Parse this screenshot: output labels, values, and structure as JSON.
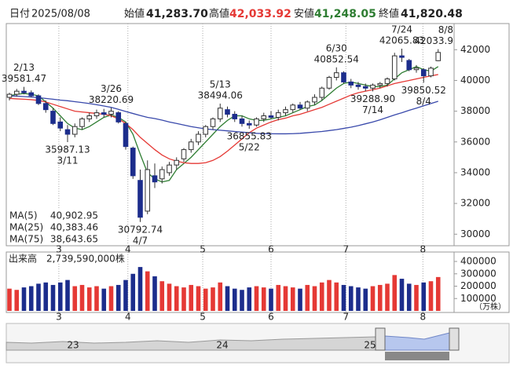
{
  "header": {
    "date_label": "日付",
    "date": "2025/08/08",
    "open_label": "始値",
    "open": "41,283.70",
    "high_label": "高値",
    "high": "42,033.92",
    "low_label": "安値",
    "low": "41,248.05",
    "close_label": "終値",
    "close": "41,820.48"
  },
  "chart_data": [
    {
      "type": "candlestick",
      "open": [
        38900,
        39100,
        39300,
        39200,
        39000,
        38500,
        38000,
        37300,
        36800,
        36500,
        37000,
        37500,
        37700,
        37900,
        37800,
        37900,
        37200,
        35600,
        33500,
        31500,
        33800,
        33600,
        34000,
        34500,
        34900,
        35500,
        36000,
        36500,
        37000,
        37500,
        38100,
        37800,
        37500,
        37200,
        37100,
        37500,
        37700,
        37600,
        37900,
        38100,
        38400,
        38200,
        38600,
        38900,
        39500,
        40200,
        40500,
        39900,
        39700,
        39600,
        39500,
        39700,
        39800,
        40100,
        41600,
        41300,
        40700,
        40700,
        40300,
        41283.7
      ],
      "high": [
        39200,
        39450,
        39581.47,
        39350,
        39100,
        38700,
        38200,
        37600,
        37100,
        37200,
        37600,
        37900,
        38100,
        38150,
        38220.69,
        38000,
        37300,
        35700,
        34200,
        34800,
        34600,
        34400,
        34700,
        35000,
        35600,
        36200,
        36700,
        37100,
        37600,
        38494.06,
        38300,
        38000,
        37700,
        37400,
        37600,
        37900,
        38000,
        38100,
        38300,
        38500,
        38600,
        38700,
        39100,
        39600,
        40300,
        40852.54,
        40600,
        40100,
        39900,
        39800,
        39800,
        39900,
        40200,
        41800,
        42065.83,
        41400,
        41000,
        40800,
        40900,
        42033.92
      ],
      "low": [
        38700,
        38950,
        39100,
        38900,
        38400,
        37900,
        37100,
        36700,
        35987.13,
        36300,
        36800,
        37300,
        37500,
        37600,
        37600,
        37200,
        35500,
        33600,
        30792.74,
        31300,
        33000,
        33300,
        33800,
        34200,
        34700,
        35300,
        35800,
        36300,
        36800,
        37300,
        37600,
        37300,
        37000,
        36855.83,
        37000,
        37300,
        37500,
        37400,
        37700,
        37900,
        38100,
        38000,
        38400,
        38700,
        39400,
        40000,
        39800,
        39500,
        39400,
        39300,
        39288.9,
        39500,
        39600,
        40000,
        41200,
        40600,
        40500,
        39850.52,
        40200,
        41248.05
      ],
      "close": [
        39100,
        39300,
        39200,
        39000,
        38500,
        38100,
        37200,
        36900,
        36500,
        37000,
        37500,
        37700,
        37900,
        37800,
        38000,
        37300,
        35700,
        33800,
        31100,
        34200,
        33400,
        34200,
        34500,
        34800,
        35500,
        36000,
        36500,
        37000,
        37500,
        38200,
        37800,
        37500,
        37200,
        37100,
        37500,
        37700,
        37600,
        37900,
        38100,
        38400,
        38200,
        38600,
        38900,
        39500,
        40200,
        40500,
        39900,
        39700,
        39600,
        39500,
        39700,
        39800,
        40100,
        41600,
        41500,
        40700,
        40800,
        40300,
        40800,
        41820.48
      ],
      "up_color": "#ffffff",
      "down_color": "#1c2d8c",
      "series": [
        {
          "name": "MA(5)",
          "color": "#2e7d32",
          "legend_value": "40,902.95",
          "values": [
            39000,
            39100,
            39150,
            39100,
            39000,
            38600,
            38200,
            37700,
            37200,
            36900,
            36800,
            37000,
            37300,
            37600,
            37750,
            37600,
            37300,
            36500,
            35200,
            34000,
            33600,
            33400,
            33500,
            34200,
            34600,
            35000,
            35500,
            36000,
            36500,
            37000,
            37400,
            37700,
            37700,
            37500,
            37400,
            37400,
            37500,
            37600,
            37700,
            37900,
            38100,
            38300,
            38400,
            38700,
            39100,
            39500,
            39800,
            39900,
            39800,
            39700,
            39600,
            39600,
            39700,
            40100,
            40500,
            40700,
            40900,
            40700,
            40600,
            40902.95
          ]
        },
        {
          "name": "MA(25)",
          "color": "#e53935",
          "legend_value": "40,383.46",
          "values": [
            38830,
            38800,
            38780,
            38750,
            38700,
            38600,
            38450,
            38300,
            38150,
            38000,
            37950,
            37900,
            37850,
            37800,
            37700,
            37500,
            37200,
            36800,
            36300,
            35900,
            35500,
            35150,
            34900,
            34750,
            34650,
            34600,
            34600,
            34650,
            34800,
            35050,
            35400,
            35800,
            36200,
            36600,
            36900,
            37100,
            37300,
            37450,
            37550,
            37700,
            37800,
            37950,
            38100,
            38250,
            38450,
            38650,
            38850,
            39050,
            39200,
            39300,
            39400,
            39500,
            39650,
            39800,
            39900,
            40000,
            40100,
            40200,
            40300,
            40383.46
          ]
        },
        {
          "name": "MA(75)",
          "color": "#3949ab",
          "legend_value": "38,643.65",
          "values": [
            39000,
            38980,
            38950,
            38920,
            38880,
            38830,
            38780,
            38720,
            38680,
            38620,
            38560,
            38500,
            38420,
            38340,
            38250,
            38120,
            37980,
            37850,
            37720,
            37600,
            37520,
            37420,
            37300,
            37200,
            37100,
            37000,
            36920,
            36850,
            36800,
            36760,
            36720,
            36680,
            36640,
            36600,
            36560,
            36540,
            36530,
            36530,
            36530,
            36540,
            36560,
            36600,
            36640,
            36680,
            36740,
            36800,
            36880,
            36960,
            37060,
            37180,
            37300,
            37440,
            37600,
            37760,
            37900,
            38060,
            38200,
            38350,
            38500,
            38643.65
          ]
        }
      ],
      "annotations": [
        {
          "date": "2/13",
          "price": 39581.47
        },
        {
          "date": "3/11",
          "price": 35987.13
        },
        {
          "date": "3/26",
          "price": 38220.69
        },
        {
          "date": "4/7",
          "price": 30792.74
        },
        {
          "date": "5/13",
          "price": 38494.06
        },
        {
          "date": "5/22",
          "price": 36855.83
        },
        {
          "date": "6/30",
          "price": 40852.54
        },
        {
          "date": "7/14",
          "price": {
            "value": 39288.9,
            "label": "39288.90"
          }
        },
        {
          "date": "7/24",
          "price": 42065.83
        },
        {
          "date": "8/4",
          "price": 39850.52
        },
        {
          "date": "8/8",
          "price": 42033.9
        }
      ],
      "ylim": [
        29300,
        43700
      ],
      "yticks": [
        30000,
        32000,
        34000,
        36000,
        38000,
        40000,
        42000
      ],
      "xticks": [
        {
          "value": 6.8,
          "label": "3"
        },
        {
          "value": 16.3,
          "label": "4"
        },
        {
          "value": 26.6,
          "label": "5"
        },
        {
          "value": 36,
          "label": "6"
        },
        {
          "value": 46.3,
          "label": "7"
        },
        {
          "value": 56.9,
          "label": "8"
        }
      ],
      "grid": true
    },
    {
      "type": "bar",
      "title": "出来高　2,739,590,000株",
      "unit": "（万株）",
      "up_color": "#e53935",
      "down_color": "#1c2d8c",
      "values": [
        180000,
        170000,
        190000,
        200000,
        220000,
        230000,
        210000,
        230000,
        250000,
        200000,
        210000,
        190000,
        200000,
        180000,
        200000,
        210000,
        250000,
        300000,
        355000,
        320000,
        280000,
        240000,
        220000,
        200000,
        190000,
        210000,
        200000,
        180000,
        190000,
        230000,
        200000,
        180000,
        170000,
        190000,
        200000,
        190000,
        180000,
        210000,
        200000,
        190000,
        180000,
        210000,
        200000,
        230000,
        250000,
        230000,
        210000,
        200000,
        190000,
        180000,
        200000,
        210000,
        220000,
        290000,
        260000,
        220000,
        210000,
        230000,
        240000,
        273959
      ],
      "ylim": [
        0,
        470000
      ],
      "yticks": [
        100000,
        200000,
        300000,
        400000
      ],
      "xticks": [
        {
          "value": 6.8,
          "label": "3"
        },
        {
          "value": 16.3,
          "label": "4"
        },
        {
          "value": 26.6,
          "label": "5"
        },
        {
          "value": 36,
          "label": "6"
        },
        {
          "value": 46.3,
          "label": "7"
        },
        {
          "value": 56.9,
          "label": "8"
        }
      ],
      "grid": true
    }
  ],
  "navigator": {
    "labels": [
      "23",
      "24",
      "25"
    ]
  }
}
